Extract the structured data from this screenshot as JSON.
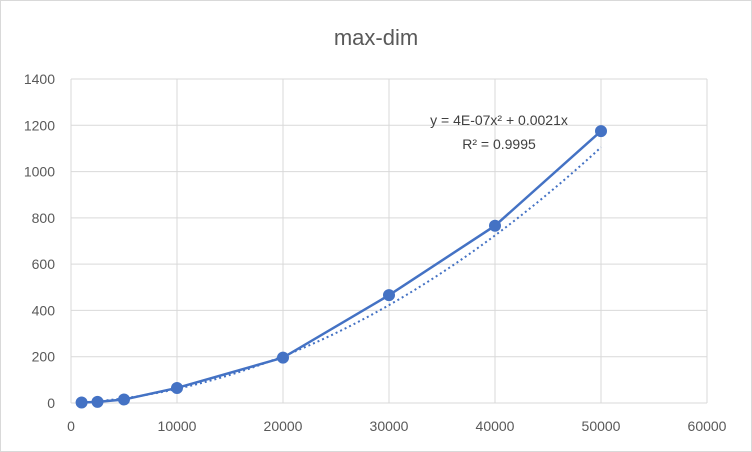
{
  "chart_data": {
    "type": "scatter",
    "title": "max-dim",
    "xlabel": "",
    "ylabel": "",
    "xlim": [
      0,
      60000
    ],
    "ylim": [
      0,
      1400
    ],
    "xticks": [
      0,
      10000,
      20000,
      30000,
      40000,
      50000,
      60000
    ],
    "yticks": [
      0,
      200,
      400,
      600,
      800,
      1000,
      1200,
      1400
    ],
    "grid": true,
    "legend": "none",
    "series": [
      {
        "x": [
          1000,
          2500,
          5000,
          10000,
          20000,
          30000,
          40000,
          50000
        ],
        "y": [
          2,
          5,
          15,
          65,
          196,
          466,
          766,
          1175
        ],
        "color": "#4472c4",
        "markers": true,
        "line": "solid"
      }
    ],
    "trendline": {
      "type": "polynomial",
      "order": 2,
      "coefficients": {
        "a": 4e-07,
        "b": 0.0021,
        "c": 0
      },
      "style": "dotted",
      "color": "#4472c4",
      "equation_label": "y = 4E-07x² + 0.0021x",
      "r2_label": "R² = 0.9995"
    }
  },
  "colors": {
    "series": "#4472c4",
    "grid": "#d9d9d9",
    "text": "#595959"
  }
}
